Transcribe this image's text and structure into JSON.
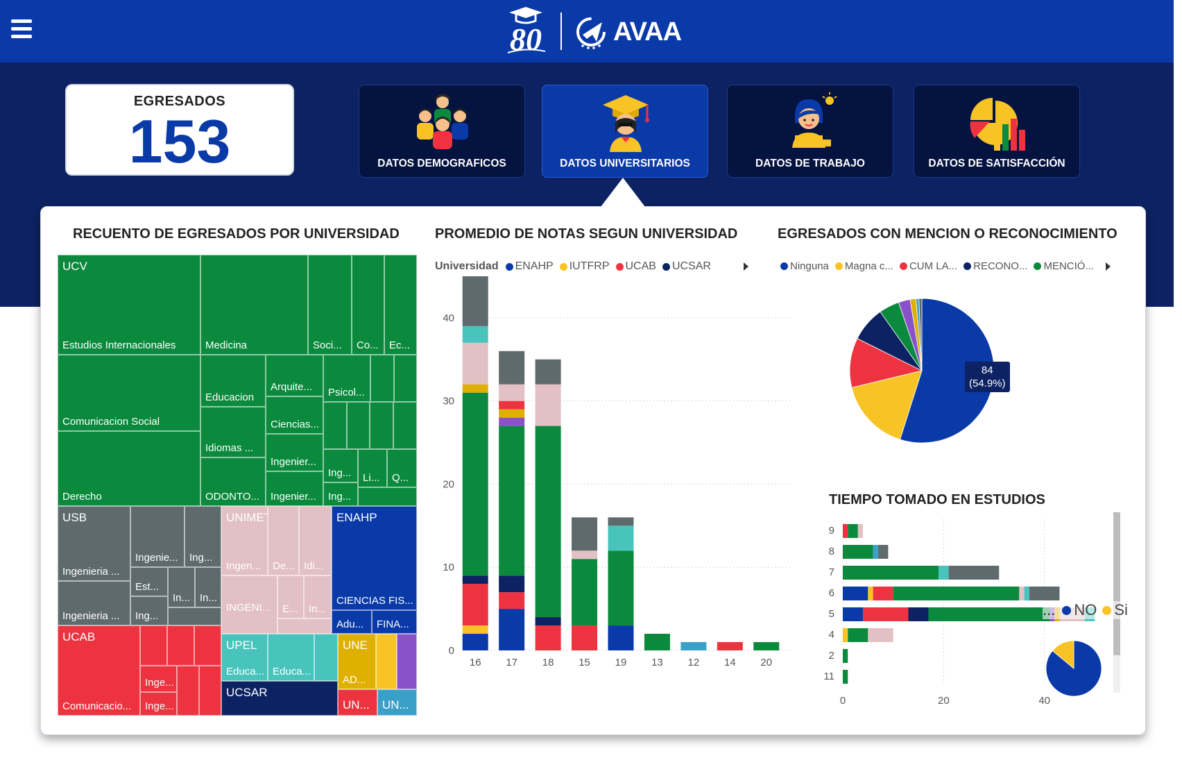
{
  "header": {
    "menu_icon": "hamburger-menu-icon",
    "logo_80_text": "80",
    "logo_brand_text": "AVAA"
  },
  "kpi": {
    "label": "EGRESADOS",
    "value": "153"
  },
  "nav": {
    "buttons": [
      {
        "label": "DATOS DEMOGRAFICOS",
        "icon": "people-group-icon",
        "active": false
      },
      {
        "label": "DATOS UNIVERSITARIOS",
        "icon": "graduate-icon",
        "active": true
      },
      {
        "label": "DATOS DE TRABAJO",
        "icon": "worker-laptop-icon",
        "active": false
      },
      {
        "label": "DATOS DE SATISFACCIÓN",
        "icon": "pie-bars-icon",
        "active": false
      }
    ]
  },
  "colors": {
    "enahp": "#0a3aa8",
    "iutfrp": "#f7c325",
    "ucab": "#ee3340",
    "ucsar": "#0c2262",
    "ucv": "#0b8a3d",
    "usb": "#5f6a6d",
    "unimet": "#e2c0c3",
    "upel": "#49c4bd",
    "une": "#e0b000",
    "purple": "#8a52c9",
    "teal": "#3aa0c8"
  },
  "treemap": {
    "title": "RECUENTO DE EGRESADOS POR UNIVERSIDAD",
    "labels": {
      "ucv": "UCV",
      "ucv_estudios": "Estudios Internacionales",
      "ucv_medicina": "Medicina",
      "ucv_soci": "Soci...",
      "ucv_co": "Co...",
      "ucv_ec": "Ec...",
      "ucv_comunicacion": "Comunicacion Social",
      "ucv_educacion": "Educacion",
      "ucv_arquite": "Arquite...",
      "ucv_psicol": "Psicol...",
      "ucv_ciencias": "Ciencias...",
      "ucv_idiomas": "Idiomas ...",
      "ucv_ingenier1": "Ingenier...",
      "ucv_ing1": "Ing...",
      "ucv_li": "Li...",
      "ucv_q": "Q...",
      "ucv_derecho": "Derecho",
      "ucv_odonto": "ODONTO...",
      "ucv_ingenier2": "Ingenier...",
      "ucv_ing2": "Ing...",
      "usb": "USB",
      "usb_ing_main": "Ingenieria ...",
      "usb_ingenie": "Ingenie...",
      "usb_ing_a": "Ing...",
      "usb_est": "Est...",
      "usb_in1": "In...",
      "usb_in2": "In...",
      "usb_ing_b": "Ingenieria ...",
      "usb_ing_c": "Ing...",
      "unimet": "UNIMET",
      "unimet_ingen": "Ingen...",
      "unimet_de": "De...",
      "unimet_idi": "Idi...",
      "unimet_ingeni": "INGENI...",
      "unimet_e": "E...",
      "unimet_in": "In...",
      "enahp": "ENAHP",
      "enahp_ciencias": "CIENCIAS FIS...",
      "enahp_adu": "Adu...",
      "enahp_fina": "FINA...",
      "ucab": "UCAB",
      "ucab_comunicacio": "Comunicacio...",
      "ucab_inge1": "Inge...",
      "ucab_inge2": "Inge...",
      "upel": "UPEL",
      "upel_educa1": "Educa...",
      "upel_educa2": "Educa...",
      "une": "UNE",
      "une_ad": "AD...",
      "ucsar": "UCSAR",
      "un1": "UN...",
      "un2": "UN..."
    }
  },
  "promedio": {
    "title": "PROMEDIO DE NOTAS SEGUN UNIVERSIDAD",
    "legend_title": "Universidad",
    "legend": [
      "ENAHP",
      "IUTFRP",
      "UCAB",
      "UCSAR"
    ]
  },
  "mencion": {
    "title": "EGRESADOS CON MENCION O RECONOCIMIENTO",
    "legend": [
      "Ninguna",
      "Magna c...",
      "CUM LA...",
      "RECONO...",
      "MENCIÓ..."
    ],
    "tooltip_value": "84",
    "tooltip_pct": "(54.9%)"
  },
  "tiempo": {
    "title": "TIEMPO TOMADO EN ESTUDIOS",
    "nosi_ellipsis": "...",
    "nosi_no": "NO",
    "nosi_si": "Si"
  },
  "chart_data": [
    {
      "type": "bar",
      "title": "PROMEDIO DE NOTAS SEGUN UNIVERSIDAD",
      "orientation": "vertical",
      "stacked": true,
      "categories": [
        "16",
        "17",
        "18",
        "15",
        "19",
        "13",
        "12",
        "14",
        "20"
      ],
      "ylim": [
        0,
        45
      ],
      "yticks": [
        0,
        10,
        20,
        30,
        40
      ],
      "grid": true,
      "legend_position": "top",
      "series": [
        {
          "name": "ENAHP",
          "color": "#0a3aa8",
          "values": [
            2,
            5,
            0,
            0,
            3,
            0,
            0,
            0,
            0
          ]
        },
        {
          "name": "IUTFRP",
          "color": "#f7c325",
          "values": [
            1,
            0,
            0,
            0,
            0,
            0,
            0,
            0,
            0
          ]
        },
        {
          "name": "UCAB",
          "color": "#ee3340",
          "values": [
            5,
            2,
            3,
            3,
            0,
            0,
            0,
            1,
            0
          ]
        },
        {
          "name": "UCSAR",
          "color": "#0c2262",
          "values": [
            1,
            2,
            1,
            0,
            0,
            0,
            0,
            0,
            0
          ]
        },
        {
          "color": "#0b8a3d",
          "values": [
            22,
            18,
            23,
            8,
            9,
            2,
            0,
            0,
            1
          ]
        },
        {
          "color": "#8a52c9",
          "values": [
            0,
            1,
            0,
            0,
            0,
            0,
            0,
            0,
            0
          ]
        },
        {
          "color": "#e0b000",
          "values": [
            1,
            1,
            0,
            0,
            0,
            0,
            0,
            0,
            0
          ]
        },
        {
          "color": "#ee3340",
          "values": [
            0,
            1,
            0,
            0,
            0,
            0,
            0,
            0,
            0
          ]
        },
        {
          "color": "#e2c0c3",
          "values": [
            5,
            2,
            5,
            1,
            0,
            0,
            0,
            0,
            0
          ]
        },
        {
          "color": "#49c4bd",
          "values": [
            2,
            0,
            0,
            0,
            3,
            0,
            0,
            0,
            0
          ]
        },
        {
          "color": "#3aa0c8",
          "values": [
            0,
            0,
            0,
            0,
            0,
            0,
            1,
            0,
            0
          ]
        },
        {
          "color": "#5f6a6d",
          "values": [
            6,
            4,
            3,
            4,
            1,
            0,
            0,
            0,
            0
          ]
        }
      ]
    },
    {
      "type": "pie",
      "title": "EGRESADOS CON MENCION O RECONOCIMIENTO",
      "legend_position": "top",
      "slices": [
        {
          "label": "Ninguna",
          "value": 84,
          "color": "#0a3aa8"
        },
        {
          "label": "Magna c...",
          "value": 25,
          "color": "#f7c325"
        },
        {
          "label": "CUM LA...",
          "value": 17,
          "color": "#ee3340"
        },
        {
          "label": "RECONO...",
          "value": 12,
          "color": "#0c2262"
        },
        {
          "label": "MENCIÓ...",
          "value": 7,
          "color": "#0b8a3d"
        },
        {
          "value": 4,
          "color": "#8a52c9"
        },
        {
          "value": 2,
          "color": "#e0b000"
        },
        {
          "value": 1,
          "color": "#3aa0c8"
        },
        {
          "value": 1,
          "color": "#5f6a6d"
        }
      ]
    },
    {
      "type": "bar",
      "title": "TIEMPO TOMADO EN ESTUDIOS",
      "orientation": "horizontal",
      "stacked": true,
      "categories": [
        "9",
        "8",
        "7",
        "6",
        "5",
        "4",
        "2",
        "11"
      ],
      "xlim": [
        0,
        60
      ],
      "xticks": [
        0,
        20,
        40,
        60
      ],
      "grid": true,
      "series": [
        {
          "color": "#0a3aa8",
          "values": [
            0,
            0,
            0,
            5,
            4,
            0,
            0,
            0
          ]
        },
        {
          "color": "#f7c325",
          "values": [
            0,
            0,
            0,
            1,
            0,
            1,
            0,
            0
          ]
        },
        {
          "color": "#ee3340",
          "values": [
            1,
            0,
            0,
            4,
            9,
            0,
            0,
            0
          ]
        },
        {
          "color": "#0c2262",
          "values": [
            0,
            0,
            0,
            0,
            4,
            0,
            0,
            0
          ]
        },
        {
          "color": "#0b8a3d",
          "values": [
            2,
            6,
            19,
            25,
            24,
            4,
            1,
            1
          ]
        },
        {
          "color": "#8a52c9",
          "values": [
            0,
            0,
            0,
            0,
            1,
            0,
            0,
            0
          ]
        },
        {
          "color": "#e0b000",
          "values": [
            0,
            0,
            0,
            0,
            1,
            0,
            0,
            0
          ]
        },
        {
          "color": "#e2c0c3",
          "values": [
            1,
            0,
            0,
            1,
            5,
            5,
            0,
            0
          ]
        },
        {
          "color": "#49c4bd",
          "values": [
            0,
            0,
            2,
            1,
            2,
            0,
            0,
            0
          ]
        },
        {
          "color": "#3aa0c8",
          "values": [
            0,
            1,
            0,
            0,
            0,
            0,
            0,
            0
          ]
        },
        {
          "color": "#5f6a6d",
          "values": [
            0,
            2,
            10,
            6,
            0,
            0,
            0,
            0
          ]
        }
      ]
    },
    {
      "type": "pie",
      "legend_position": "top-right",
      "slices": [
        {
          "label": "NO",
          "value": 86,
          "color": "#0a3aa8"
        },
        {
          "label": "Si",
          "value": 14,
          "color": "#f7c325"
        }
      ]
    }
  ]
}
